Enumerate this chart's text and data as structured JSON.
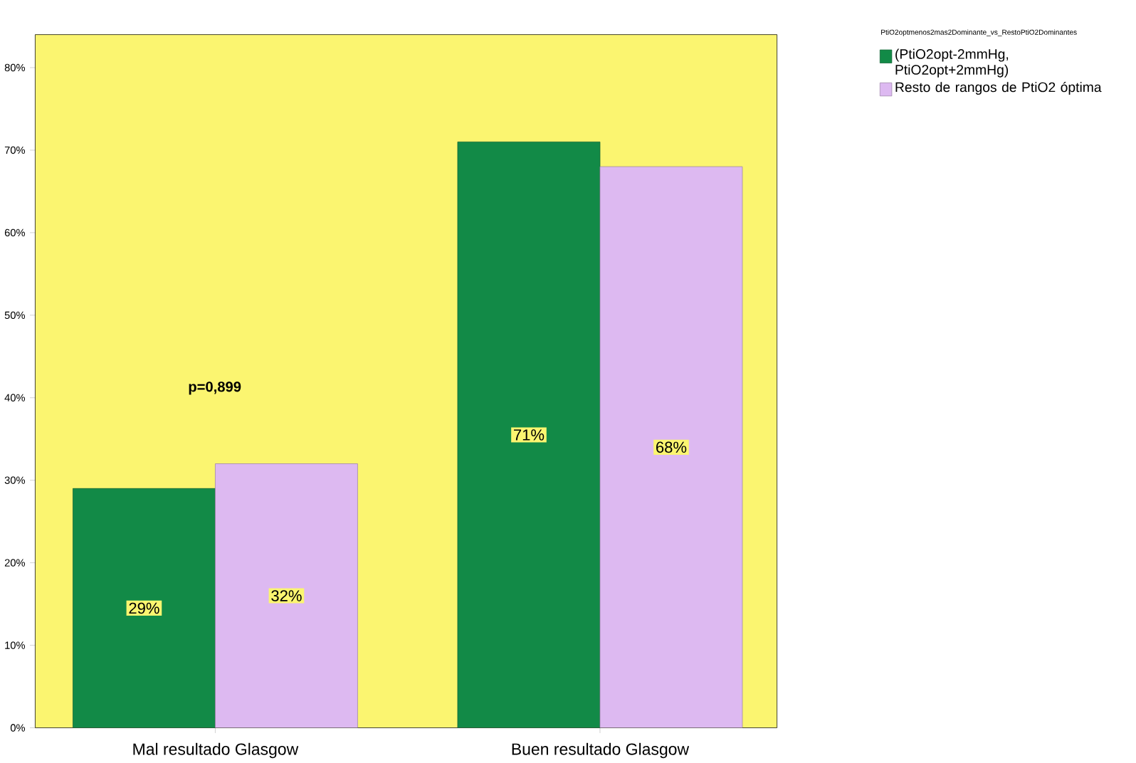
{
  "chart_data": {
    "type": "bar",
    "categories": [
      "Mal resultado Glasgow",
      "Buen resultado Glasgow"
    ],
    "legend_title": "PtiO2optmenos2mas2Dominante_vs_RestoPtiO2Dominantes",
    "series": [
      {
        "name": "(PtiO2opt-2mmHg, PtiO2opt+2mmHg)",
        "color": "#128a47",
        "values": [
          29,
          71
        ],
        "value_labels": [
          "29%",
          "71%"
        ]
      },
      {
        "name": "Resto de rangos de PtiO2 óptima",
        "color": "#ddb9f1",
        "values": [
          32,
          68
        ],
        "value_labels": [
          "32%",
          "68%"
        ]
      }
    ],
    "ylim": [
      0,
      84
    ],
    "yticks": [
      {
        "value": 0,
        "label": "0%"
      },
      {
        "value": 10,
        "label": "10%"
      },
      {
        "value": 20,
        "label": "20%"
      },
      {
        "value": 30,
        "label": "30%"
      },
      {
        "value": 40,
        "label": "40%"
      },
      {
        "value": 50,
        "label": "50%"
      },
      {
        "value": 60,
        "label": "60%"
      },
      {
        "value": 70,
        "label": "70%"
      },
      {
        "value": 80,
        "label": "80%"
      }
    ],
    "annotations": [
      "p=0,899"
    ],
    "legend": "right",
    "grid": false
  }
}
